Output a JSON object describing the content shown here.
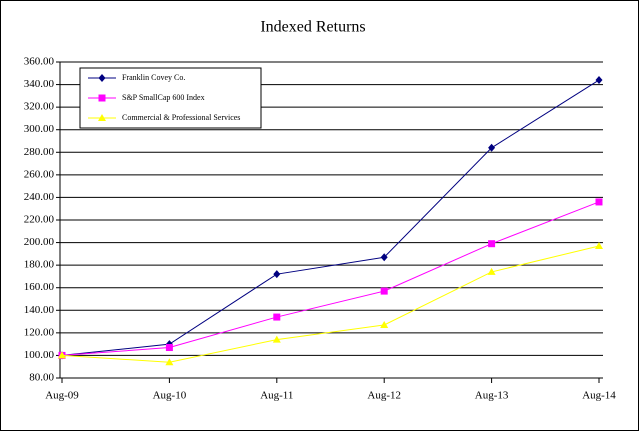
{
  "chart_data": {
    "type": "line",
    "title": "Indexed Returns",
    "categories": [
      "Aug-09",
      "Aug-10",
      "Aug-11",
      "Aug-12",
      "Aug-13",
      "Aug-14"
    ],
    "series": [
      {
        "name": "Franklin Covey Co.",
        "color": "#000080",
        "marker": "diamond",
        "values": [
          100,
          110,
          172,
          187,
          284,
          344
        ]
      },
      {
        "name": "S&P SmallCap 600 Index",
        "color": "#ff00ff",
        "marker": "square",
        "values": [
          100,
          107,
          134,
          157,
          199,
          236
        ]
      },
      {
        "name": "Commercial & Professional Services",
        "color": "#ffff00",
        "marker": "triangle",
        "values": [
          100,
          94,
          114,
          127,
          174,
          197
        ]
      }
    ],
    "ylim": [
      80,
      360
    ],
    "yticks": [
      {
        "value": 80,
        "label": "80.00"
      },
      {
        "value": 100,
        "label": "100.00"
      },
      {
        "value": 120,
        "label": "120.00"
      },
      {
        "value": 140,
        "label": "140.00"
      },
      {
        "value": 160,
        "label": "160.00"
      },
      {
        "value": 180,
        "label": "180.00"
      },
      {
        "value": 200,
        "label": "200.00"
      },
      {
        "value": 220,
        "label": "220.00"
      },
      {
        "value": 240,
        "label": "240.00"
      },
      {
        "value": 260,
        "label": "260.00"
      },
      {
        "value": 280,
        "label": "280.00"
      },
      {
        "value": 300,
        "label": "300.00"
      },
      {
        "value": 320,
        "label": "320.00"
      },
      {
        "value": 340,
        "label": "340.00"
      },
      {
        "value": 360,
        "label": "360.00"
      }
    ],
    "grid": true,
    "legend": "top-left"
  }
}
